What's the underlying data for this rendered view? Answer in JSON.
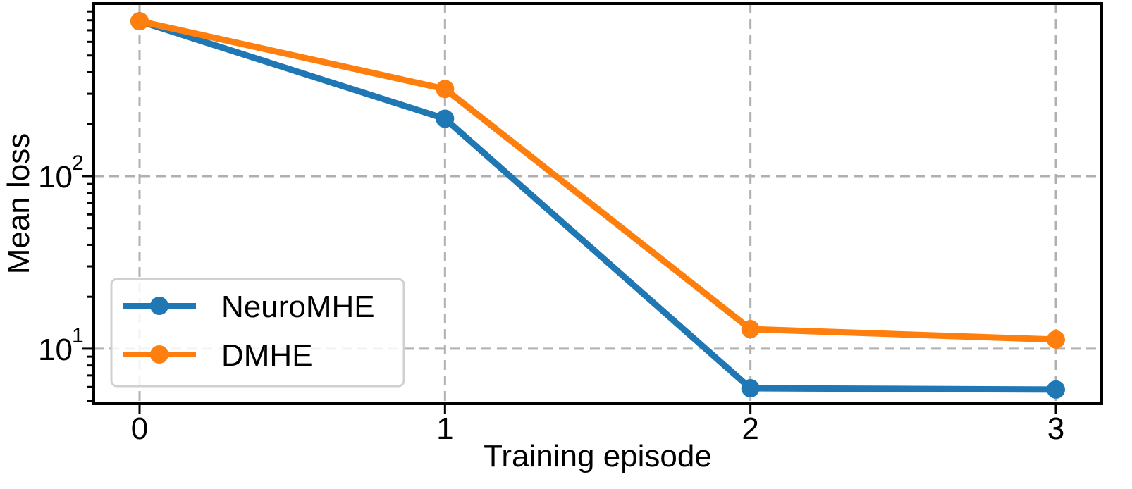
{
  "chart_data": {
    "type": "line",
    "xlabel": "Training episode",
    "ylabel": "Mean loss",
    "yscale": "log",
    "x": [
      0,
      1,
      2,
      3
    ],
    "xlim": [
      -0.15,
      3.15
    ],
    "ylim": [
      4.8,
      1000
    ],
    "xticks": [
      0,
      1,
      2,
      3
    ],
    "xtick_labels": [
      "0",
      "1",
      "2",
      "3"
    ],
    "yticks_major": [
      {
        "value": 10,
        "base": "10",
        "exp": "1"
      },
      {
        "value": 100,
        "base": "10",
        "exp": "2"
      }
    ],
    "grid": true,
    "legend_position": "lower left",
    "series": [
      {
        "name": "NeuroMHE",
        "color": "#1f77b4",
        "values": [
          790,
          215,
          5.9,
          5.8
        ]
      },
      {
        "name": "DMHE",
        "color": "#ff7f0e",
        "values": [
          790,
          320,
          13.0,
          11.3
        ]
      }
    ]
  }
}
